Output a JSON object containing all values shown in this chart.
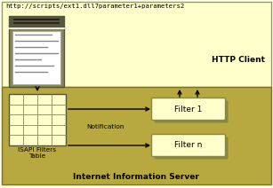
{
  "fig_width": 3.07,
  "fig_height": 2.12,
  "dpi": 100,
  "http_fill": "#ffffcc",
  "http_edge": "#999966",
  "iis_fill": "#b8a840",
  "iis_edge": "#7a7020",
  "filter_fill": "#ffffcc",
  "filter_edge": "#888844",
  "doc_bg_fill": "#8a8850",
  "doc_header_fill": "#555540",
  "doc_body_fill": "#ffffff",
  "url_text": "http://scripts/ext1.dll7parameter1+parameters2",
  "http_client_text": "HTTP Client",
  "iis_text": "Internet Information Server",
  "isapi_text": "ISAPI Filters\nTable",
  "filter1_text": "Filter 1",
  "filtern_text": "Filter n",
  "notification_text": "Notification"
}
